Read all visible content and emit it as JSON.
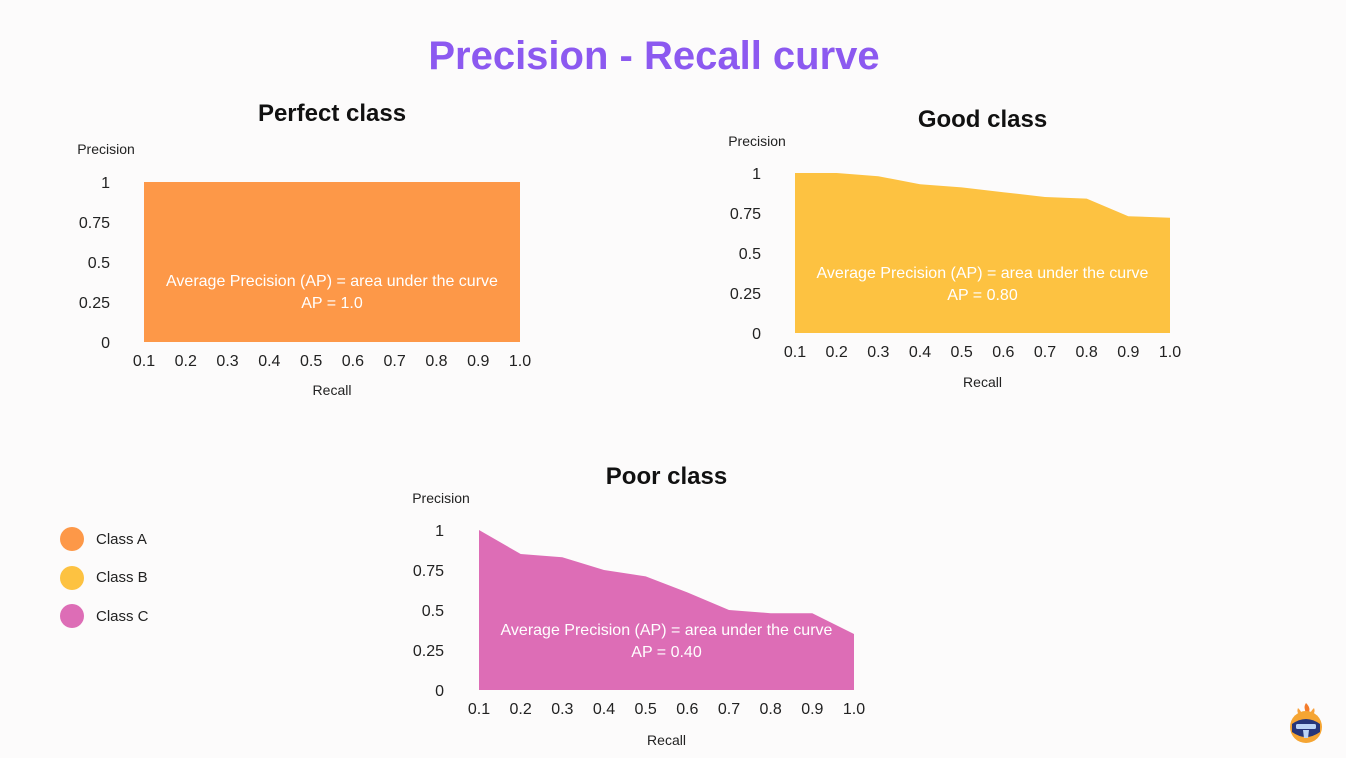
{
  "page": {
    "title": "Precision - Recall curve"
  },
  "legend": {
    "items": [
      {
        "label": "Class A",
        "color": "#fd9848"
      },
      {
        "label": "Class B",
        "color": "#fdc241"
      },
      {
        "label": "Class C",
        "color": "#dd6db6"
      }
    ]
  },
  "logo": {
    "icon": "helmet-logo-icon"
  },
  "chart_data": [
    {
      "type": "area",
      "title": "Perfect class",
      "xlabel": "Recall",
      "ylabel": "Precision",
      "x": [
        0.1,
        0.2,
        0.3,
        0.4,
        0.5,
        0.6,
        0.7,
        0.8,
        0.9,
        1.0
      ],
      "x_tick_labels": [
        "0.1",
        "0.2",
        "0.3",
        "0.4",
        "0.5",
        "0.6",
        "0.7",
        "0.8",
        "0.9",
        "1.0"
      ],
      "y_ticks": [
        0,
        0.25,
        0.5,
        0.75,
        1
      ],
      "y_tick_labels": [
        "0",
        "0.25",
        "0.5",
        "0.75",
        "1"
      ],
      "xlim": [
        0.1,
        1.0
      ],
      "ylim": [
        0,
        1
      ],
      "grid": false,
      "series": [
        {
          "values": [
            1,
            1,
            1,
            1,
            1,
            1,
            1,
            1,
            1,
            1
          ],
          "color": "#fd9848"
        }
      ],
      "annotation": [
        "Average Precision (AP) = area under the curve",
        "AP = 1.0"
      ]
    },
    {
      "type": "area",
      "title": "Good class",
      "xlabel": "Recall",
      "ylabel": "Precision",
      "x": [
        0.1,
        0.2,
        0.3,
        0.4,
        0.5,
        0.6,
        0.7,
        0.8,
        0.9,
        1.0
      ],
      "x_tick_labels": [
        "0.1",
        "0.2",
        "0.3",
        "0.4",
        "0.5",
        "0.6",
        "0.7",
        "0.8",
        "0.9",
        "1.0"
      ],
      "y_ticks": [
        0,
        0.25,
        0.5,
        0.75,
        1
      ],
      "y_tick_labels": [
        "0",
        "0.25",
        "0.5",
        "0.75",
        "1"
      ],
      "xlim": [
        0.1,
        1.0
      ],
      "ylim": [
        0,
        1
      ],
      "grid": false,
      "series": [
        {
          "values": [
            1.0,
            1.0,
            0.98,
            0.93,
            0.91,
            0.88,
            0.85,
            0.84,
            0.73,
            0.72
          ],
          "color": "#fdc241"
        }
      ],
      "annotation": [
        "Average Precision (AP) = area under the curve",
        "AP = 0.80"
      ]
    },
    {
      "type": "area",
      "title": "Poor class",
      "xlabel": "Recall",
      "ylabel": "Precision",
      "x": [
        0.1,
        0.2,
        0.3,
        0.4,
        0.5,
        0.6,
        0.7,
        0.8,
        0.9,
        1.0
      ],
      "x_tick_labels": [
        "0.1",
        "0.2",
        "0.3",
        "0.4",
        "0.5",
        "0.6",
        "0.7",
        "0.8",
        "0.9",
        "1.0"
      ],
      "y_ticks": [
        0,
        0.25,
        0.5,
        0.75,
        1
      ],
      "y_tick_labels": [
        "0",
        "0.25",
        "0.5",
        "0.75",
        "1"
      ],
      "xlim": [
        0.1,
        1.0
      ],
      "ylim": [
        0,
        1
      ],
      "grid": false,
      "series": [
        {
          "values": [
            1.0,
            0.85,
            0.83,
            0.75,
            0.71,
            0.61,
            0.5,
            0.48,
            0.48,
            0.35
          ],
          "color": "#dd6db6"
        }
      ],
      "annotation": [
        "Average Precision (AP) = area under the curve",
        "AP = 0.40"
      ]
    }
  ]
}
